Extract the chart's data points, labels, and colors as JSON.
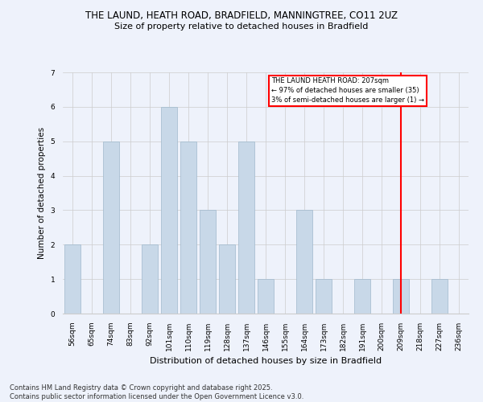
{
  "title1": "THE LAUND, HEATH ROAD, BRADFIELD, MANNINGTREE, CO11 2UZ",
  "title2": "Size of property relative to detached houses in Bradfield",
  "xlabel": "Distribution of detached houses by size in Bradfield",
  "ylabel": "Number of detached properties",
  "categories": [
    "56sqm",
    "65sqm",
    "74sqm",
    "83sqm",
    "92sqm",
    "101sqm",
    "110sqm",
    "119sqm",
    "128sqm",
    "137sqm",
    "146sqm",
    "155sqm",
    "164sqm",
    "173sqm",
    "182sqm",
    "191sqm",
    "200sqm",
    "209sqm",
    "218sqm",
    "227sqm",
    "236sqm"
  ],
  "values": [
    2,
    0,
    5,
    0,
    2,
    6,
    5,
    3,
    2,
    5,
    1,
    0,
    3,
    1,
    0,
    1,
    0,
    1,
    0,
    1,
    0
  ],
  "bar_color": "#c8d8e8",
  "bar_edgecolor": "#a0b8cc",
  "highlight_line_index": 17,
  "annotation_text": "THE LAUND HEATH ROAD: 207sqm\n← 97% of detached houses are smaller (35)\n3% of semi-detached houses are larger (1) →",
  "annotation_box_color": "#ff0000",
  "grid_color": "#cccccc",
  "ylim": [
    0,
    7
  ],
  "yticks": [
    0,
    1,
    2,
    3,
    4,
    5,
    6,
    7
  ],
  "footer": "Contains HM Land Registry data © Crown copyright and database right 2025.\nContains public sector information licensed under the Open Government Licence v3.0.",
  "background_color": "#eef2fb",
  "plot_background": "#eef2fb",
  "title1_fontsize": 8.5,
  "title2_fontsize": 8.0,
  "xlabel_fontsize": 8.0,
  "ylabel_fontsize": 7.5,
  "tick_fontsize": 6.5,
  "footer_fontsize": 6.0
}
